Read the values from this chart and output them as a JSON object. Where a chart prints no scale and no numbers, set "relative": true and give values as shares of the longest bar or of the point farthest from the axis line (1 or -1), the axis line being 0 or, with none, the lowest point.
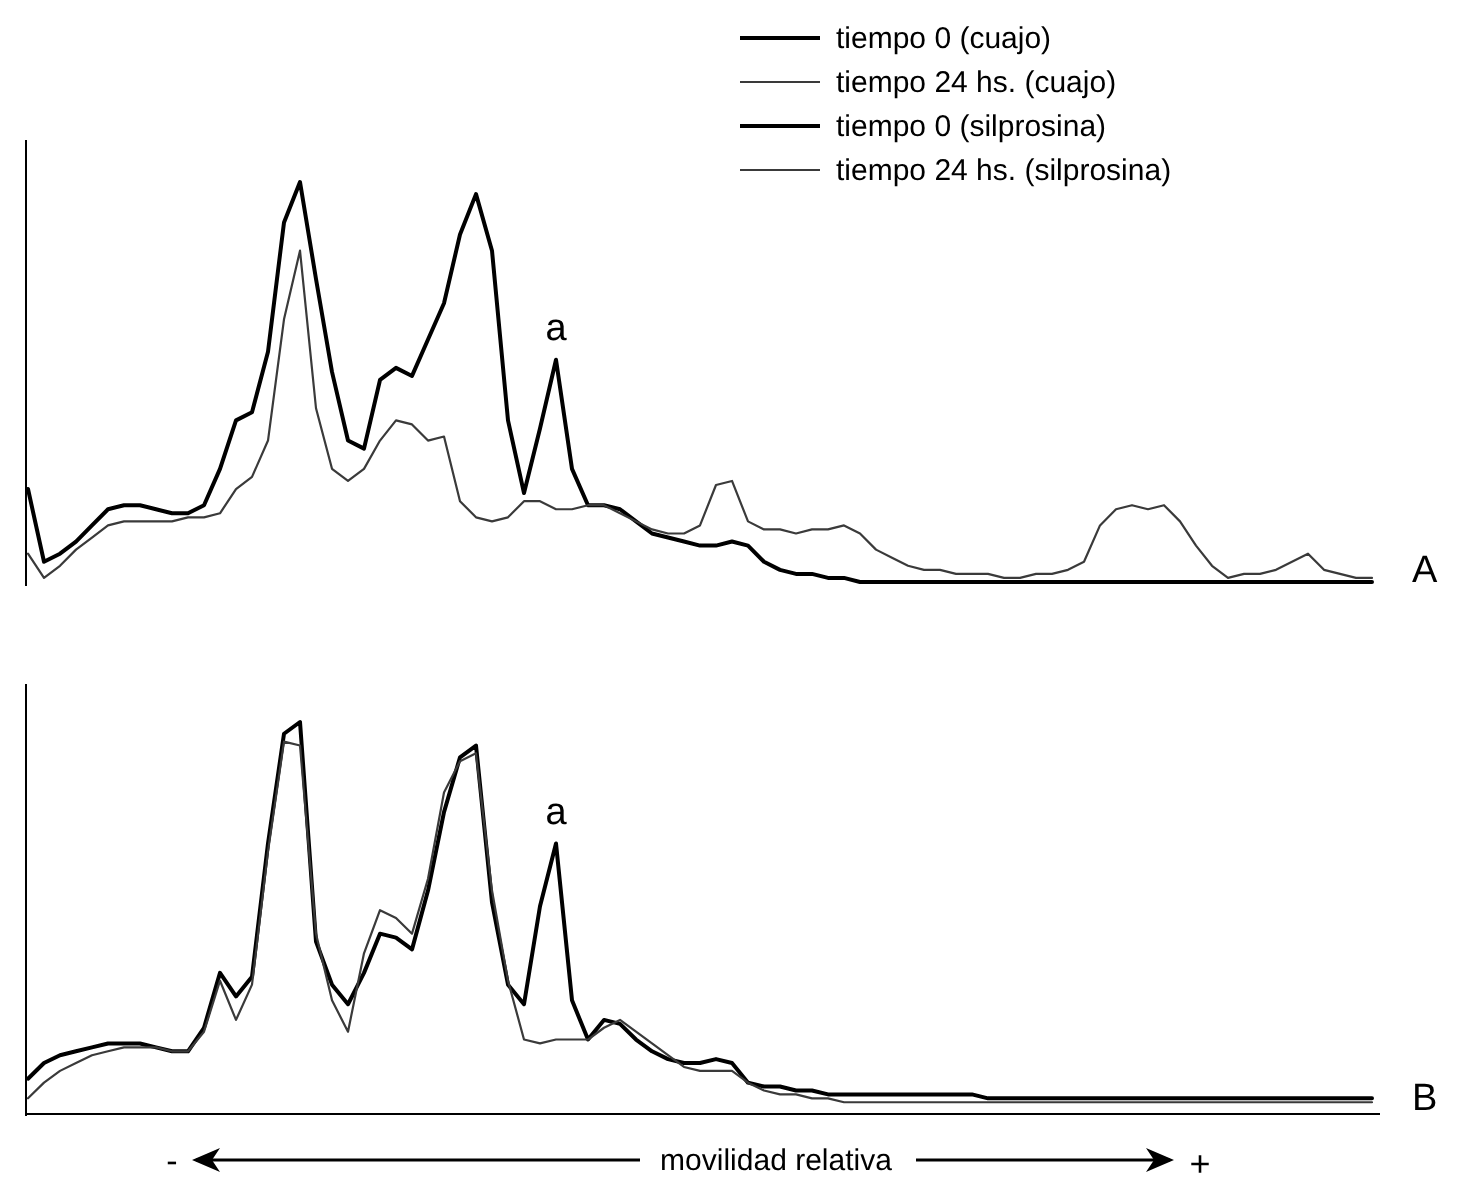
{
  "chart_data": [
    {
      "type": "line",
      "relative": true,
      "legend": "top right",
      "categories": [
        null,
        null,
        null,
        null,
        null,
        null,
        null,
        null,
        null,
        null,
        null,
        null,
        null,
        null,
        null,
        null,
        null,
        null,
        null,
        null,
        null,
        null,
        null,
        null,
        null,
        null,
        null,
        null,
        null,
        null,
        null,
        null,
        null,
        null,
        null,
        null,
        null,
        null,
        null,
        null,
        null,
        null,
        null,
        null,
        null,
        null,
        null,
        null,
        null,
        null,
        null,
        null,
        null,
        null,
        null,
        null,
        null,
        null,
        null,
        null,
        null,
        null,
        null,
        null,
        null,
        null,
        null,
        null,
        null,
        null,
        null,
        null,
        null,
        null,
        null,
        null,
        null,
        null,
        null,
        null,
        null,
        null,
        null,
        null,
        null
      ],
      "series": [
        {
          "name": "tiempo 0 (cuajo)",
          "color": "#000000",
          "values": [
            0.24,
            0.06,
            0.08,
            0.11,
            0.15,
            0.19,
            0.2,
            0.2,
            0.19,
            0.18,
            0.18,
            0.2,
            0.29,
            0.41,
            0.43,
            0.58,
            0.9,
            1.0,
            0.76,
            0.53,
            0.36,
            0.34,
            0.51,
            0.54,
            0.52,
            0.61,
            0.7,
            0.87,
            0.97,
            0.83,
            0.41,
            0.23,
            0.39,
            0.56,
            0.29,
            0.2,
            0.2,
            0.19,
            0.16,
            0.13,
            0.12,
            0.11,
            0.1,
            0.1,
            0.11,
            0.1,
            0.06,
            0.04,
            0.03,
            0.03,
            0.02,
            0.02,
            0.01,
            0.01,
            0.01,
            0.01,
            0.01,
            0.01,
            0.01,
            0.01,
            0.01,
            0.01,
            0.01,
            0.01,
            0.01,
            0.01,
            0.01,
            0.01,
            0.01,
            0.01,
            0.01,
            0.01,
            0.01,
            0.01,
            0.01,
            0.01,
            0.01,
            0.01,
            0.01,
            0.01,
            0.01,
            0.01,
            0.01,
            0.01,
            0.01
          ]
        },
        {
          "name": "tiempo 24 hs. (cuajo)",
          "color": "#3a3a3a",
          "values": [
            0.08,
            0.02,
            0.05,
            0.09,
            0.12,
            0.15,
            0.16,
            0.16,
            0.16,
            0.16,
            0.17,
            0.17,
            0.18,
            0.24,
            0.27,
            0.36,
            0.66,
            0.83,
            0.44,
            0.29,
            0.26,
            0.29,
            0.36,
            0.41,
            0.4,
            0.36,
            0.37,
            0.21,
            0.17,
            0.16,
            0.17,
            0.21,
            0.21,
            0.19,
            0.19,
            0.2,
            0.2,
            0.18,
            0.16,
            0.14,
            0.13,
            0.13,
            0.15,
            0.25,
            0.26,
            0.16,
            0.14,
            0.14,
            0.13,
            0.14,
            0.14,
            0.15,
            0.13,
            0.09,
            0.07,
            0.05,
            0.04,
            0.04,
            0.03,
            0.03,
            0.03,
            0.02,
            0.02,
            0.03,
            0.03,
            0.04,
            0.06,
            0.15,
            0.19,
            0.2,
            0.19,
            0.2,
            0.16,
            0.1,
            0.05,
            0.02,
            0.03,
            0.03,
            0.04,
            0.06,
            0.08,
            0.04,
            0.03,
            0.02,
            0.02
          ]
        }
      ],
      "annotations": [
        "A",
        {
          "text": "a",
          "y": 0.56
        }
      ]
    },
    {
      "type": "line",
      "relative": true,
      "legend": "top right",
      "xlabel": "movilidad relativa",
      "categories": [
        null,
        null,
        null,
        null,
        null,
        null,
        null,
        null,
        null,
        null,
        null,
        null,
        null,
        null,
        null,
        null,
        null,
        null,
        null,
        null,
        null,
        null,
        null,
        null,
        null,
        null,
        null,
        null,
        null,
        null,
        null,
        null,
        null,
        null,
        null,
        null,
        null,
        null,
        null,
        null,
        null,
        null,
        null,
        null,
        null,
        null,
        null,
        null,
        null,
        null,
        null,
        null,
        null,
        null,
        null,
        null,
        null,
        null,
        null,
        null,
        null,
        null,
        null,
        null,
        null,
        null,
        null,
        null,
        null,
        null,
        null,
        null,
        null,
        null,
        null,
        null,
        null,
        null,
        null,
        null,
        null,
        null,
        null,
        null,
        null
      ],
      "series": [
        {
          "name": "tiempo 0 (silprosina)",
          "color": "#000000",
          "values": [
            0.09,
            0.13,
            0.15,
            0.16,
            0.17,
            0.18,
            0.18,
            0.18,
            0.17,
            0.16,
            0.16,
            0.22,
            0.36,
            0.3,
            0.35,
            0.69,
            0.97,
            1.0,
            0.44,
            0.33,
            0.28,
            0.36,
            0.46,
            0.45,
            0.42,
            0.57,
            0.77,
            0.91,
            0.94,
            0.54,
            0.33,
            0.28,
            0.53,
            0.69,
            0.29,
            0.19,
            0.24,
            0.23,
            0.19,
            0.16,
            0.14,
            0.13,
            0.13,
            0.14,
            0.13,
            0.08,
            0.07,
            0.07,
            0.06,
            0.06,
            0.05,
            0.05,
            0.05,
            0.05,
            0.05,
            0.05,
            0.05,
            0.05,
            0.05,
            0.05,
            0.04,
            0.04,
            0.04,
            0.04,
            0.04,
            0.04,
            0.04,
            0.04,
            0.04,
            0.04,
            0.04,
            0.04,
            0.04,
            0.04,
            0.04,
            0.04,
            0.04,
            0.04,
            0.04,
            0.04,
            0.04,
            0.04,
            0.04,
            0.04,
            0.04
          ]
        },
        {
          "name": "tiempo 24 hs. (silprosina)",
          "color": "#3a3a3a",
          "values": [
            0.04,
            0.08,
            0.11,
            0.13,
            0.15,
            0.16,
            0.17,
            0.17,
            0.17,
            0.16,
            0.16,
            0.21,
            0.34,
            0.24,
            0.33,
            0.67,
            0.95,
            0.94,
            0.46,
            0.29,
            0.21,
            0.41,
            0.52,
            0.5,
            0.46,
            0.6,
            0.82,
            0.9,
            0.92,
            0.57,
            0.34,
            0.19,
            0.18,
            0.19,
            0.19,
            0.19,
            0.22,
            0.24,
            0.21,
            0.18,
            0.15,
            0.12,
            0.11,
            0.11,
            0.11,
            0.08,
            0.06,
            0.05,
            0.05,
            0.04,
            0.04,
            0.03,
            0.03,
            0.03,
            0.03,
            0.03,
            0.03,
            0.03,
            0.03,
            0.03,
            0.03,
            0.03,
            0.03,
            0.03,
            0.03,
            0.03,
            0.03,
            0.03,
            0.03,
            0.03,
            0.03,
            0.03,
            0.03,
            0.03,
            0.03,
            0.03,
            0.03,
            0.03,
            0.03,
            0.03,
            0.03,
            0.03,
            0.03,
            0.03,
            0.03
          ]
        }
      ],
      "annotations": [
        "B",
        "-",
        "+",
        {
          "text": "a",
          "y": 0.69
        }
      ]
    }
  ]
}
